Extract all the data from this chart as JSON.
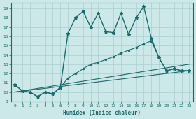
{
  "background_color": "#cce8e8",
  "grid_color": "#aacfcf",
  "line_color": "#1a6b6b",
  "xlabel": "Humidex (Indice chaleur)",
  "xlim": [
    -0.5,
    23.5
  ],
  "ylim": [
    9,
    19.6
  ],
  "yticks": [
    9,
    10,
    11,
    12,
    13,
    14,
    15,
    16,
    17,
    18,
    19
  ],
  "xticks": [
    0,
    1,
    2,
    3,
    4,
    5,
    6,
    7,
    8,
    9,
    10,
    11,
    12,
    13,
    14,
    15,
    16,
    17,
    18,
    19,
    20,
    21,
    22,
    23
  ],
  "line1_x": [
    0,
    1,
    2,
    3,
    4,
    5,
    6,
    7,
    8,
    9,
    10,
    11,
    12,
    13,
    14,
    15,
    16,
    17,
    18,
    19,
    20,
    21,
    22,
    23
  ],
  "line1_y": [
    10.8,
    10.1,
    10.0,
    9.5,
    10.0,
    9.8,
    10.5,
    16.3,
    18.0,
    18.7,
    17.0,
    18.5,
    16.5,
    16.4,
    18.5,
    16.2,
    18.0,
    19.2,
    15.8,
    13.7,
    12.3,
    12.5,
    12.3,
    12.3
  ],
  "line2_x": [
    0,
    1,
    2,
    3,
    4,
    5,
    6,
    7,
    8,
    9,
    10,
    11,
    12,
    13,
    14,
    15,
    16,
    17,
    18,
    19,
    20,
    21,
    22,
    23
  ],
  "line2_y": [
    10.8,
    10.1,
    10.0,
    9.5,
    10.0,
    9.8,
    10.5,
    11.5,
    12.0,
    12.5,
    13.0,
    13.2,
    13.5,
    13.8,
    14.2,
    14.5,
    14.8,
    15.2,
    15.5,
    13.7,
    12.3,
    12.5,
    12.3,
    12.3
  ],
  "line3_x": [
    0,
    23
  ],
  "line3_y": [
    10.0,
    13.0
  ],
  "line4_x": [
    0,
    23
  ],
  "line4_y": [
    10.0,
    12.3
  ]
}
